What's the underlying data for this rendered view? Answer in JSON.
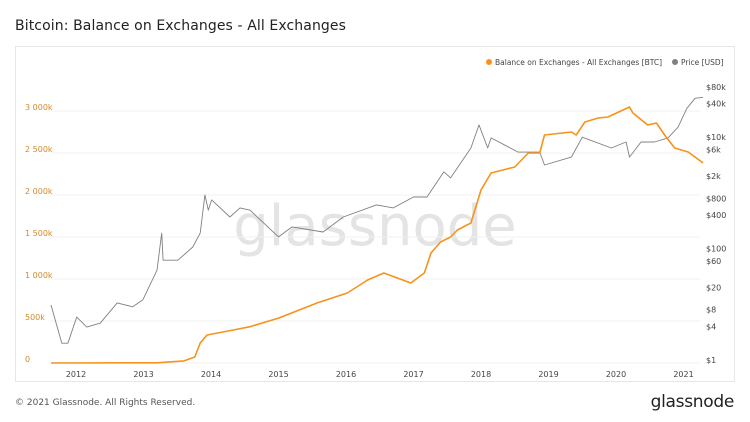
{
  "title": "Bitcoin: Balance on Exchanges - All Exchanges",
  "footer": "© 2021 Glassnode. All Rights Reserved.",
  "logo": "glassnode",
  "watermark": "glassnode",
  "colors": {
    "balance": "#f7931a",
    "price": "#808080",
    "left_axis_text": "#d4892a",
    "grid": "#f0f0f0"
  },
  "chart_data": {
    "type": "line",
    "title": "Bitcoin: Balance on Exchanges - All Exchanges",
    "legend_position": "top-right",
    "grid": true,
    "x_ticks": [
      "2012",
      "2013",
      "2014",
      "2015",
      "2016",
      "2017",
      "2018",
      "2019",
      "2020",
      "2021"
    ],
    "xlim": [
      2011.63,
      2021.29
    ],
    "y_left": {
      "ticks": [
        "0",
        "500k",
        "1 000k",
        "1 500k",
        "2 000k",
        "2 500k",
        "3 000k"
      ],
      "tick_values": [
        0,
        500,
        1000,
        1500,
        2000,
        2500,
        3000
      ],
      "unit": "k BTC",
      "ylim": [
        0,
        3250
      ]
    },
    "y_right": {
      "scale": "log",
      "ticks": [
        "$1",
        "$4",
        "$8",
        "$20",
        "$60",
        "$100",
        "$400",
        "$800",
        "$2k",
        "$6k",
        "$10k",
        "$40k",
        "$80k"
      ],
      "tick_values": [
        1,
        4,
        8,
        20,
        60,
        100,
        400,
        800,
        2000,
        6000,
        10000,
        40000,
        80000
      ],
      "ylim": [
        1,
        100000
      ]
    },
    "series": [
      {
        "name": "Balance on Exchanges - All Exchanges [BTC]",
        "axis": "left",
        "x": [
          2011.63,
          2013.2,
          2013.6,
          2013.76,
          2013.84,
          2013.94,
          2014.33,
          2014.58,
          2015.0,
          2015.57,
          2016.02,
          2016.32,
          2016.56,
          2016.96,
          2017.16,
          2017.26,
          2017.4,
          2017.55,
          2017.65,
          2017.85,
          2018.0,
          2018.15,
          2018.5,
          2018.7,
          2018.87,
          2018.94,
          2019.34,
          2019.41,
          2019.54,
          2019.73,
          2019.88,
          2020.2,
          2020.25,
          2020.47,
          2020.6,
          2020.72,
          2020.87,
          2021.07,
          2021.29
        ],
        "y": [
          0,
          2,
          25,
          71,
          238,
          333,
          393,
          432,
          535,
          714,
          833,
          988,
          1071,
          952,
          1071,
          1310,
          1440,
          1500,
          1583,
          1667,
          2060,
          2262,
          2333,
          2500,
          2500,
          2714,
          2750,
          2714,
          2869,
          2916,
          2928,
          3048,
          2976,
          2833,
          2857,
          2714,
          2560,
          2512,
          2381
        ]
      },
      {
        "name": "Price [USD]",
        "axis": "right",
        "x": [
          2011.63,
          2011.79,
          2011.88,
          2012.01,
          2012.16,
          2012.36,
          2012.61,
          2012.84,
          2012.99,
          2013.2,
          2013.27,
          2013.29,
          2013.51,
          2013.73,
          2013.84,
          2013.91,
          2013.96,
          2014.01,
          2014.28,
          2014.43,
          2014.58,
          2015.0,
          2015.2,
          2015.66,
          2015.96,
          2016.45,
          2016.7,
          2017.0,
          2017.2,
          2017.45,
          2017.55,
          2017.85,
          2017.97,
          2018.1,
          2018.15,
          2018.55,
          2018.87,
          2018.94,
          2019.34,
          2019.5,
          2019.93,
          2020.15,
          2020.2,
          2020.37,
          2020.57,
          2020.77,
          2020.92,
          2021.05,
          2021.17,
          2021.29
        ],
        "y": [
          9.7,
          2,
          2,
          5.9,
          3.9,
          4.6,
          10.6,
          9,
          12,
          41,
          190,
          62,
          62,
          107,
          190,
          920,
          490,
          750,
          370,
          537,
          490,
          162,
          245,
          199,
          370,
          610,
          537,
          845,
          845,
          2390,
          1860,
          6400,
          16600,
          6400,
          9700,
          5400,
          5400,
          3170,
          4400,
          10000,
          6400,
          8200,
          4400,
          8200,
          8200,
          9700,
          15200,
          33000,
          50000,
          52000
        ]
      }
    ]
  }
}
